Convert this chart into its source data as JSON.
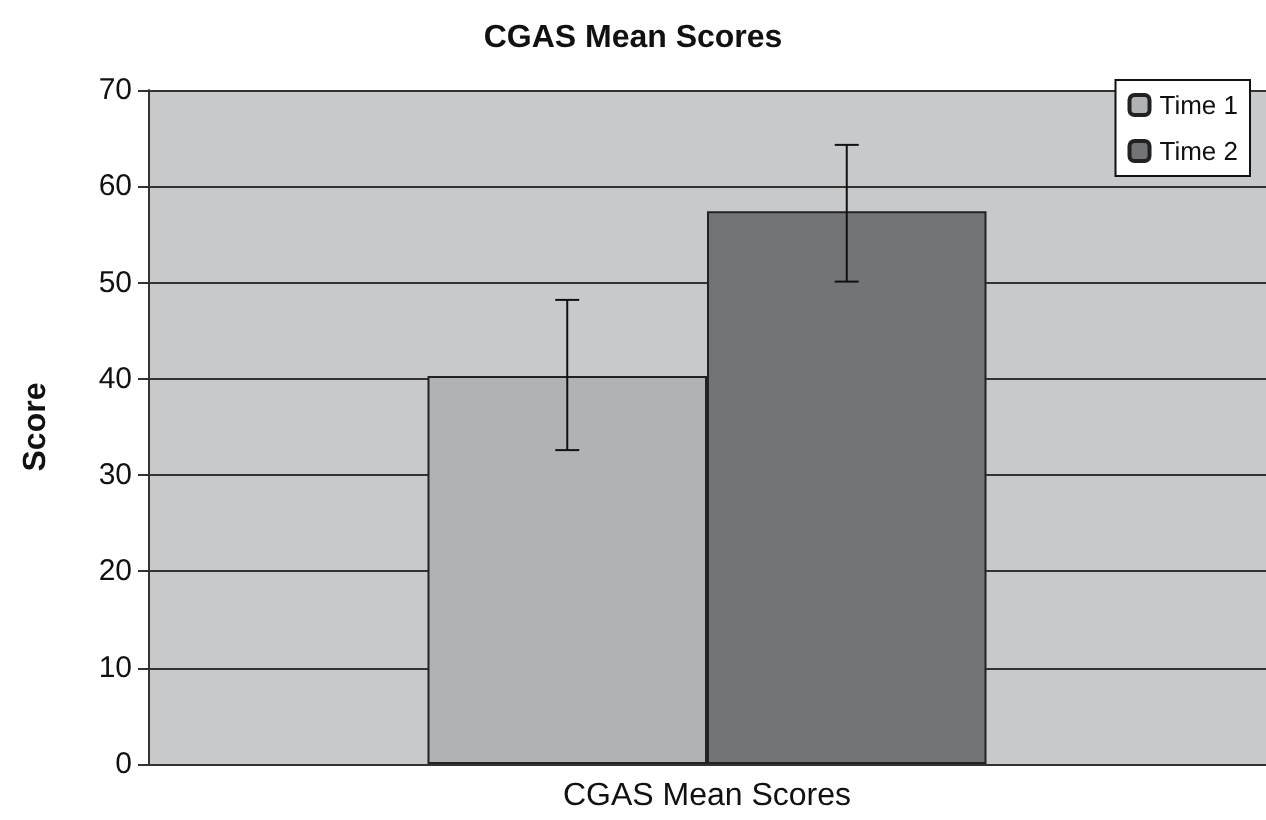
{
  "chart_data": {
    "type": "bar",
    "title": "CGAS Mean Scores",
    "ylabel": "Score",
    "categories": [
      "CGAS Mean Scores"
    ],
    "series": [
      {
        "name": "Time 1",
        "color": "#b1b2b6",
        "values": [
          40.3
        ],
        "errors": [
          [
            32.6,
            48.2
          ]
        ]
      },
      {
        "name": "Time 2",
        "color": "#737478",
        "values": [
          57.4
        ],
        "errors": [
          [
            50.1,
            64.3
          ]
        ]
      }
    ],
    "ylim": [
      0,
      70
    ],
    "yticks": [
      0,
      10,
      20,
      30,
      40,
      50,
      60,
      70
    ],
    "grid": "y",
    "legend": "top right"
  }
}
